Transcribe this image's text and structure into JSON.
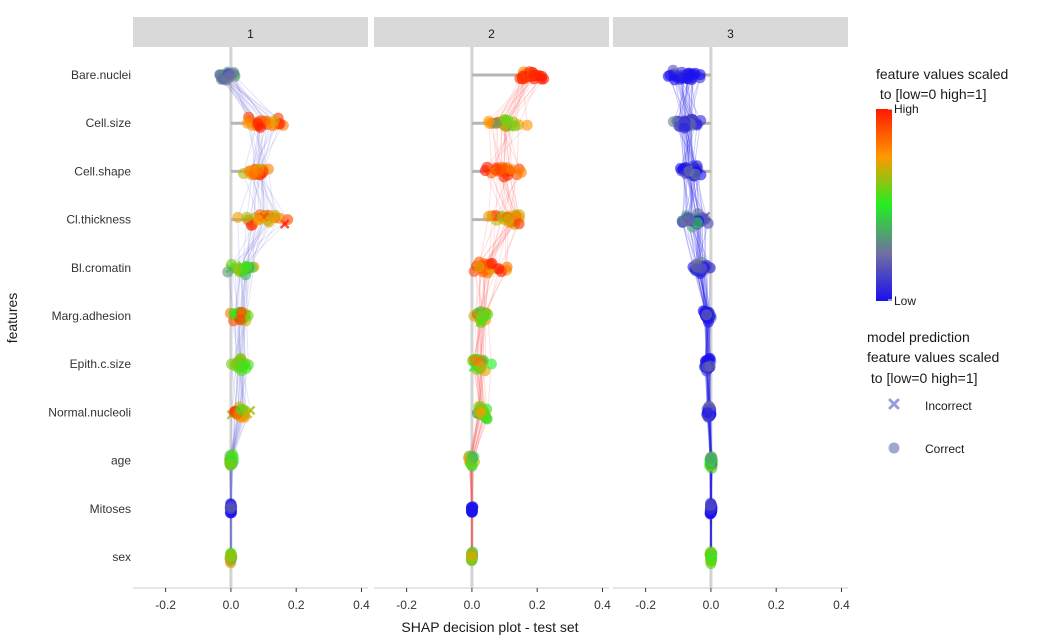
{
  "chart_data": {
    "type": "scatter",
    "title": "",
    "xlabel": "SHAP decision plot - test set",
    "ylabel": "features",
    "xlim": [
      -0.3,
      0.42
    ],
    "x_ticks": [
      -0.2,
      0.0,
      0.2,
      0.4
    ],
    "x_tick_labels": [
      "-0.2",
      "0.0",
      "0.2",
      "0.4"
    ],
    "features": [
      "Bare.nuclei",
      "Cell.size",
      "Cell.shape",
      "Cl.thickness",
      "Bl.cromatin",
      "Marg.adhesion",
      "Epith.c.size",
      "Normal.nucleoli",
      "age",
      "Mitoses",
      "sex"
    ],
    "facets": [
      {
        "label": "1",
        "mean_shap": [
          -0.01,
          0.08,
          0.06,
          0.1,
          0.02,
          0.03,
          0.03,
          0.02,
          0.005,
          0.0,
          0.0
        ],
        "summary": [
          {
            "center": -0.01,
            "spread": 0.03,
            "value": 0.3
          },
          {
            "center": 0.1,
            "spread": 0.06,
            "value": 0.85
          },
          {
            "center": 0.08,
            "spread": 0.05,
            "value": 0.8
          },
          {
            "center": 0.12,
            "spread": 0.08,
            "value": 0.75
          },
          {
            "center": 0.03,
            "spread": 0.05,
            "value": 0.55
          },
          {
            "center": 0.03,
            "spread": 0.03,
            "value": 0.7
          },
          {
            "center": 0.03,
            "spread": 0.03,
            "value": 0.6
          },
          {
            "center": 0.03,
            "spread": 0.03,
            "value": 0.7
          },
          {
            "center": 0.0,
            "spread": 0.008,
            "value": 0.55
          },
          {
            "center": 0.0,
            "spread": 0.003,
            "value": 0.0
          },
          {
            "center": 0.0,
            "spread": 0.003,
            "value": 0.6
          }
        ]
      },
      {
        "label": "2",
        "mean_shap": [
          0.17,
          0.12,
          0.11,
          0.15,
          0.05,
          0.03,
          0.03,
          0.03,
          0.005,
          0.0,
          0.0
        ],
        "summary": [
          {
            "center": 0.18,
            "spread": 0.05,
            "value": 0.95
          },
          {
            "center": 0.1,
            "spread": 0.07,
            "value": 0.6
          },
          {
            "center": 0.09,
            "spread": 0.07,
            "value": 0.9
          },
          {
            "center": 0.1,
            "spread": 0.08,
            "value": 0.75
          },
          {
            "center": 0.05,
            "spread": 0.06,
            "value": 0.85
          },
          {
            "center": 0.03,
            "spread": 0.03,
            "value": 0.65
          },
          {
            "center": 0.03,
            "spread": 0.03,
            "value": 0.6
          },
          {
            "center": 0.03,
            "spread": 0.03,
            "value": 0.6
          },
          {
            "center": 0.0,
            "spread": 0.01,
            "value": 0.55
          },
          {
            "center": 0.0,
            "spread": 0.003,
            "value": 0.0
          },
          {
            "center": 0.0,
            "spread": 0.003,
            "value": 0.6
          }
        ]
      },
      {
        "label": "3",
        "mean_shap": [
          -0.1,
          -0.08,
          -0.06,
          -0.06,
          -0.03,
          -0.01,
          -0.01,
          -0.005,
          -0.002,
          0.0,
          0.0
        ],
        "summary": [
          {
            "center": -0.08,
            "spread": 0.05,
            "value": 0.03
          },
          {
            "center": -0.07,
            "spread": 0.04,
            "value": 0.08
          },
          {
            "center": -0.06,
            "spread": 0.04,
            "value": 0.1
          },
          {
            "center": -0.05,
            "spread": 0.04,
            "value": 0.2
          },
          {
            "center": -0.03,
            "spread": 0.03,
            "value": 0.15
          },
          {
            "center": -0.01,
            "spread": 0.012,
            "value": 0.05
          },
          {
            "center": -0.01,
            "spread": 0.012,
            "value": 0.05
          },
          {
            "center": -0.005,
            "spread": 0.008,
            "value": 0.05
          },
          {
            "center": 0.0,
            "spread": 0.006,
            "value": 0.45
          },
          {
            "center": 0.0,
            "spread": 0.003,
            "value": 0.0
          },
          {
            "center": 0.0,
            "spread": 0.003,
            "value": 0.6
          }
        ]
      }
    ],
    "color_scale": {
      "title_line1": "feature values scaled",
      "title_line2": " to [low=0 high=1]",
      "high_label": "High",
      "low_label": "Low",
      "stops": [
        "#1a10f0",
        "#7070a0",
        "#22ee22",
        "#ff9900",
        "#ff1a00"
      ]
    },
    "shape_legend": {
      "title_line1": "model prediction",
      "title_line2": "feature values scaled",
      "title_line3": " to [low=0 high=1]",
      "items": [
        {
          "label": "Incorrect",
          "symbol": "cross",
          "color": "#9b9be0"
        },
        {
          "label": "Correct",
          "symbol": "circle",
          "color": "#a0a6cc"
        }
      ]
    },
    "panel_background": "#ffffff",
    "strip_background": "#d9d9d9",
    "zero_line_color": "#d3d3d3"
  }
}
